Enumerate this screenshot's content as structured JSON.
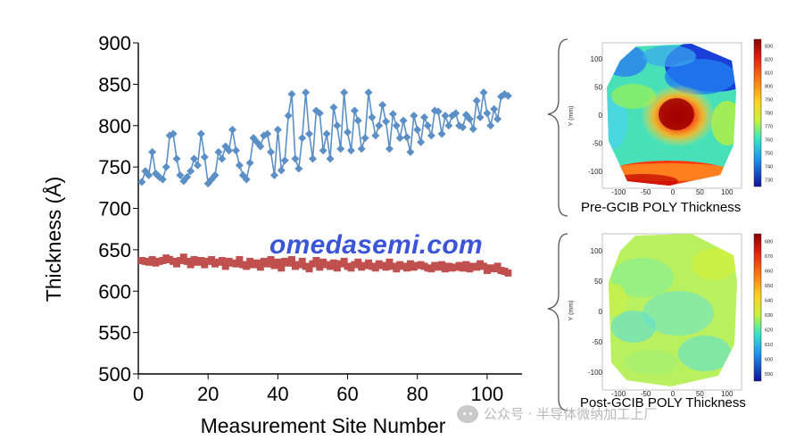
{
  "chart_data": [
    {
      "type": "line",
      "xlabel": "Measurement Site Number",
      "ylabel": "Thickness (Å)",
      "xlim": [
        0,
        110
      ],
      "ylim": [
        500,
        900
      ],
      "xticks": [
        0,
        20,
        40,
        60,
        80,
        100
      ],
      "yticks": [
        500,
        550,
        600,
        650,
        700,
        750,
        800,
        850,
        900
      ],
      "grid": false,
      "series": [
        {
          "color": "#5b8fc6",
          "marker": "diamond",
          "x": [
            1,
            2,
            3,
            4,
            5,
            6,
            7,
            8,
            9,
            10,
            11,
            12,
            13,
            14,
            15,
            16,
            17,
            18,
            19,
            20,
            21,
            22,
            23,
            24,
            25,
            26,
            27,
            28,
            29,
            30,
            31,
            32,
            33,
            34,
            35,
            36,
            37,
            38,
            39,
            40,
            41,
            42,
            43,
            44,
            45,
            46,
            47,
            48,
            49,
            50,
            51,
            52,
            53,
            54,
            55,
            56,
            57,
            58,
            59,
            60,
            61,
            62,
            63,
            64,
            65,
            66,
            67,
            68,
            69,
            70,
            71,
            72,
            73,
            74,
            75,
            76,
            77,
            78,
            79,
            80,
            81,
            82,
            83,
            84,
            85,
            86,
            87,
            88,
            89,
            90,
            91,
            92,
            93,
            94,
            95,
            96,
            97,
            98,
            99,
            100,
            101,
            102,
            103,
            104,
            105,
            106
          ],
          "y": [
            732,
            745,
            740,
            768,
            742,
            738,
            735,
            750,
            788,
            790,
            760,
            740,
            733,
            738,
            745,
            760,
            752,
            790,
            762,
            730,
            735,
            740,
            768,
            760,
            775,
            770,
            795,
            770,
            752,
            740,
            735,
            755,
            785,
            780,
            775,
            788,
            790,
            768,
            740,
            795,
            746,
            758,
            812,
            838,
            760,
            748,
            785,
            840,
            790,
            760,
            818,
            815,
            770,
            790,
            760,
            822,
            800,
            772,
            840,
            792,
            770,
            818,
            806,
            772,
            785,
            840,
            810,
            788,
            800,
            825,
            805,
            772,
            814,
            800,
            785,
            806,
            786,
            768,
            812,
            795,
            780,
            810,
            800,
            788,
            818,
            817,
            790,
            812,
            800,
            812,
            815,
            800,
            798,
            813,
            808,
            796,
            830,
            810,
            840,
            815,
            800,
            820,
            808,
            835,
            838,
            836
          ]
        },
        {
          "color": "#c0504d",
          "marker": "square",
          "x": [
            1,
            2,
            3,
            4,
            5,
            6,
            7,
            8,
            9,
            10,
            11,
            12,
            13,
            14,
            15,
            16,
            17,
            18,
            19,
            20,
            21,
            22,
            23,
            24,
            25,
            26,
            27,
            28,
            29,
            30,
            31,
            32,
            33,
            34,
            35,
            36,
            37,
            38,
            39,
            40,
            41,
            42,
            43,
            44,
            45,
            46,
            47,
            48,
            49,
            50,
            51,
            52,
            53,
            54,
            55,
            56,
            57,
            58,
            59,
            60,
            61,
            62,
            63,
            64,
            65,
            66,
            67,
            68,
            69,
            70,
            71,
            72,
            73,
            74,
            75,
            76,
            77,
            78,
            79,
            80,
            81,
            82,
            83,
            84,
            85,
            86,
            87,
            88,
            89,
            90,
            91,
            92,
            93,
            94,
            95,
            96,
            97,
            98,
            99,
            100,
            101,
            102,
            103,
            104,
            105,
            106
          ],
          "y": [
            637,
            636,
            635,
            638,
            634,
            636,
            637,
            640,
            638,
            636,
            633,
            637,
            641,
            636,
            632,
            638,
            635,
            637,
            632,
            636,
            638,
            633,
            635,
            637,
            630,
            636,
            634,
            633,
            638,
            632,
            630,
            636,
            632,
            634,
            629,
            636,
            633,
            638,
            631,
            635,
            628,
            636,
            634,
            638,
            630,
            632,
            636,
            630,
            627,
            633,
            637,
            629,
            635,
            632,
            630,
            634,
            628,
            633,
            636,
            630,
            628,
            632,
            635,
            629,
            631,
            634,
            630,
            628,
            633,
            631,
            629,
            635,
            630,
            627,
            632,
            630,
            628,
            633,
            629,
            631,
            632,
            630,
            628,
            627,
            631,
            629,
            632,
            627,
            630,
            628,
            629,
            631,
            628,
            632,
            627,
            630,
            629,
            633,
            630,
            625,
            628,
            627,
            630,
            625,
            624,
            622
          ]
        }
      ]
    },
    {
      "type": "heatmap",
      "caption": "Pre-GCIB POLY Thickness",
      "xticks": [
        -100,
        -50,
        0,
        50,
        100
      ],
      "yticks": [
        100,
        50,
        0,
        -50,
        -100
      ],
      "ylabel": "Y (mm)",
      "colorbar_ticks": [
        830,
        820,
        810,
        800,
        790,
        780,
        770,
        760,
        750,
        740,
        730
      ],
      "colorbar_range": [
        725,
        835
      ]
    },
    {
      "type": "heatmap",
      "caption": "Post-GCIB POLY Thickness",
      "xticks": [
        -100,
        -50,
        0,
        50,
        100
      ],
      "yticks": [
        100,
        50,
        0,
        -50,
        -100
      ],
      "ylabel": "Y (mm)",
      "colorbar_ticks": [
        680,
        670,
        660,
        650,
        640,
        630,
        620,
        610,
        600,
        590
      ],
      "colorbar_range": [
        585,
        685
      ]
    }
  ],
  "watermark": {
    "site_text": "omedasemi.com",
    "site_color": "#3a55d8",
    "wechat_icon": "wechat-icon",
    "wechat_text": "公众号 · 半导体微纳加工上厂"
  }
}
